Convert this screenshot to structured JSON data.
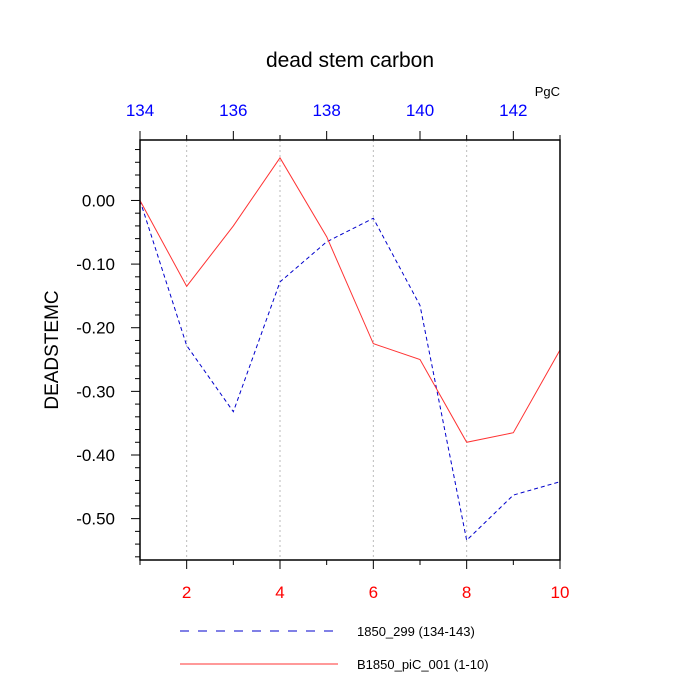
{
  "chart_data": {
    "type": "line",
    "title": "dead stem carbon",
    "units": "PgC",
    "ylabel": "DEADSTEMC",
    "ylim": [
      -0.565,
      0.095
    ],
    "yticks": [
      0.0,
      -0.1,
      -0.2,
      -0.3,
      -0.4,
      -0.5
    ],
    "ytick_labels": [
      "0.00",
      "-0.10",
      "-0.20",
      "-0.30",
      "-0.40",
      "-0.50"
    ],
    "xlim_bottom": [
      1,
      10
    ],
    "xticks_bottom": [
      2,
      4,
      6,
      8,
      10
    ],
    "xtick_labels_bottom": [
      "2",
      "4",
      "6",
      "8",
      "10"
    ],
    "xlim_top": [
      134,
      143
    ],
    "xticks_top": [
      134,
      136,
      138,
      140,
      142
    ],
    "xtick_labels_top": [
      "134",
      "136",
      "138",
      "140",
      "142"
    ],
    "grid": "vertical dotted at even bottom ticks",
    "legend_placement": "bottom",
    "series": [
      {
        "name": "1850_299 (134-143)",
        "color": "#0000cc",
        "dash": "dashed",
        "axis": "top",
        "x": [
          134,
          135,
          136,
          137,
          138,
          139,
          140,
          141,
          142,
          143
        ],
        "values": [
          0.0,
          -0.228,
          -0.332,
          -0.128,
          -0.065,
          -0.028,
          -0.165,
          -0.534,
          -0.463,
          -0.442
        ]
      },
      {
        "name": "B1850_piC_001 (1-10)",
        "color": "#ff3333",
        "dash": "solid",
        "axis": "bottom",
        "x": [
          1,
          2,
          3,
          4,
          5,
          6,
          7,
          8,
          9,
          10
        ],
        "values": [
          0.0,
          -0.135,
          -0.04,
          0.067,
          -0.057,
          -0.225,
          -0.25,
          -0.38,
          -0.365,
          -0.235
        ]
      }
    ],
    "colors": {
      "top_axis_labels": "#0000ff",
      "bottom_axis_labels": "#ff0000",
      "left_axis_labels": "#000000"
    }
  }
}
